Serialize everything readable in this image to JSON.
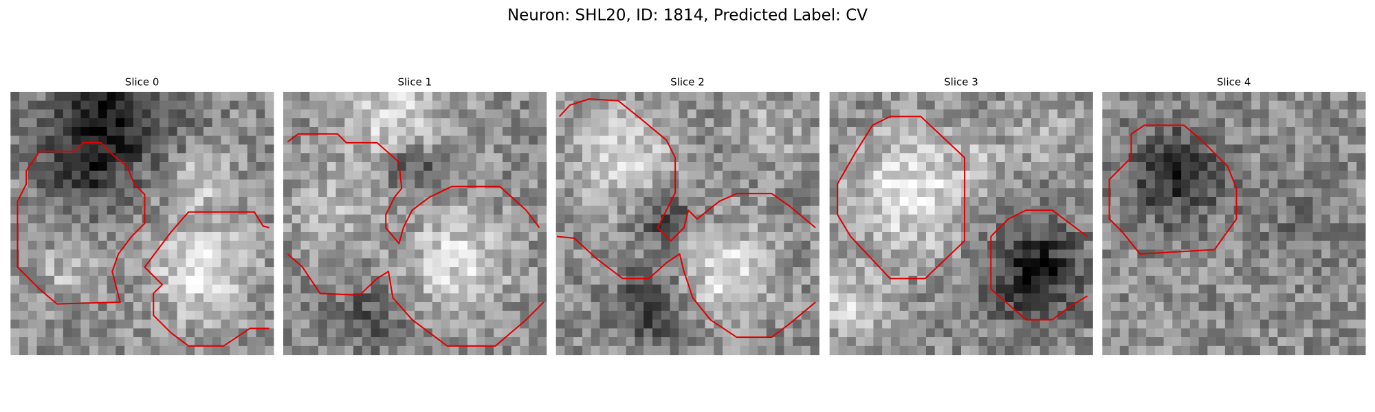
{
  "title": "Neuron: SHL20, ID: 1814, Predicted Label: CV",
  "panels": [
    {
      "title": "Slice 0"
    },
    {
      "title": "Slice 1"
    },
    {
      "title": "Slice 2"
    },
    {
      "title": "Slice 3"
    },
    {
      "title": "Slice 4"
    }
  ]
}
